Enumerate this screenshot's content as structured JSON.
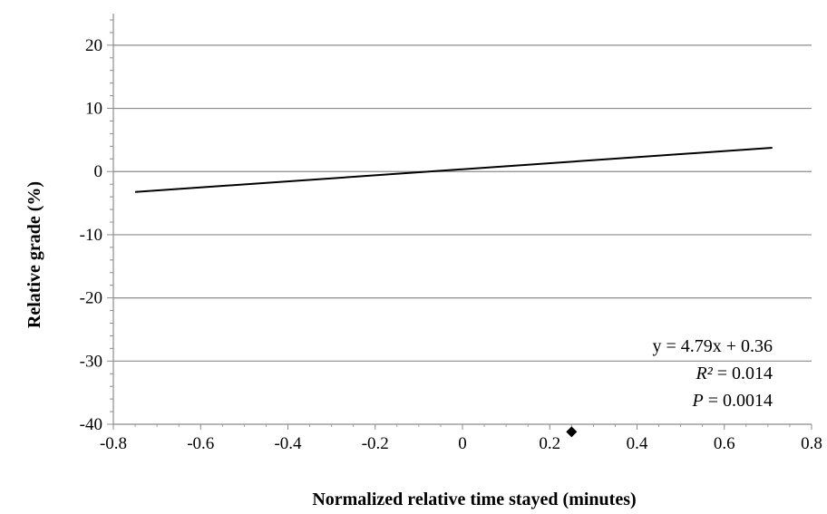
{
  "chart_data": {
    "type": "scatter",
    "xlabel": "Normalized relative time stayed (minutes)",
    "ylabel": "Relative grade (%)",
    "xlim": [
      -0.8,
      0.8
    ],
    "ylim": [
      -40,
      25
    ],
    "x_ticks": [
      "-0.8",
      "-0.6",
      "-0.4",
      "-0.2",
      "0",
      "0.2",
      "0.4",
      "0.6",
      "0.8"
    ],
    "y_ticks": [
      "20",
      "10",
      "0",
      "-10",
      "-20",
      "-30",
      "-40"
    ],
    "grid": "horizontal",
    "points": [
      {
        "x": 0.25,
        "y": -41.2
      }
    ],
    "trendline": {
      "slope": 4.79,
      "intercept": 0.36,
      "x_range": [
        -0.75,
        0.71
      ]
    },
    "annotation": {
      "equation": "y = 4.79x + 0.36",
      "r2_symbol": "R²",
      "r2_value": " = 0.014",
      "p_symbol": "P",
      "p_value": " = 0.0014"
    }
  }
}
